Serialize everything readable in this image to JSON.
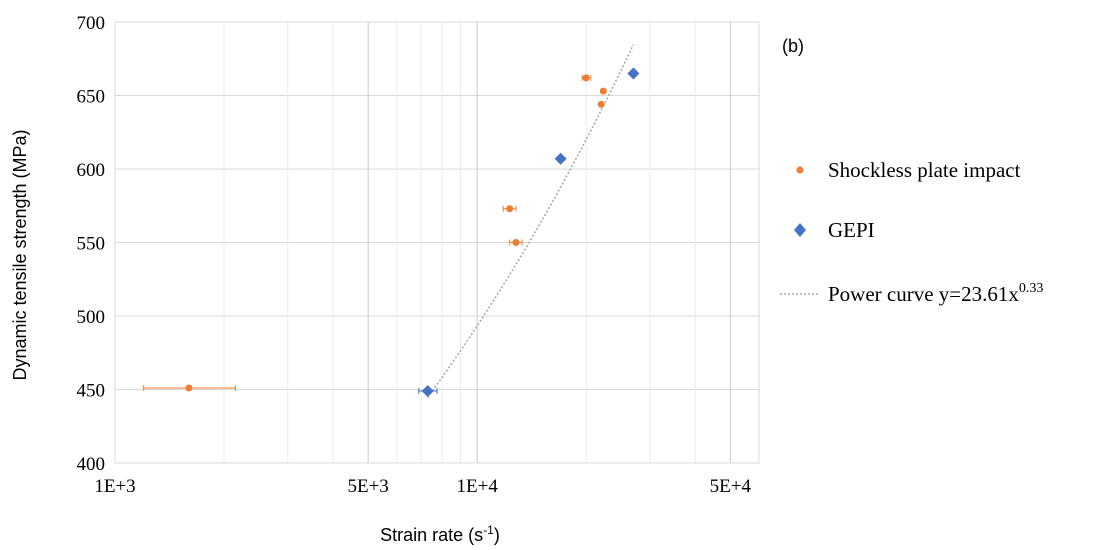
{
  "chart_data": {
    "type": "scatter",
    "panel_label": "(b)",
    "xlabel": "Strain rate (s",
    "xlabel_sup": "-1",
    "xlabel_end": ")",
    "ylabel": "Dynamic tensile strength (MPa)",
    "x_scale": "log",
    "xlim": [
      1000,
      60000
    ],
    "ylim": [
      400,
      700
    ],
    "x_ticks": [
      {
        "value": 1000,
        "label": "1E+3"
      },
      {
        "value": 5000,
        "label": "5E+3"
      },
      {
        "value": 10000,
        "label": "1E+4"
      },
      {
        "value": 50000,
        "label": "5E+4"
      }
    ],
    "x_minor": [
      2000,
      3000,
      4000,
      6000,
      7000,
      8000,
      9000,
      20000,
      30000,
      40000
    ],
    "y_ticks": [
      400,
      450,
      500,
      550,
      600,
      650,
      700
    ],
    "grid": true,
    "legend_position": "right",
    "series": [
      {
        "name": "Shockless plate impact",
        "marker": "circle",
        "color": "#ED7D31",
        "points": [
          {
            "x": 1600,
            "y": 451,
            "xerr": [
              1200,
              2150
            ]
          },
          {
            "x": 12300,
            "y": 573,
            "xerr": [
              11800,
              12800
            ]
          },
          {
            "x": 12800,
            "y": 550,
            "xerr": [
              12300,
              13300
            ]
          },
          {
            "x": 20000,
            "y": 662,
            "xerr": [
              19500,
              20600
            ]
          },
          {
            "x": 22000,
            "y": 644
          },
          {
            "x": 22300,
            "y": 653
          }
        ]
      },
      {
        "name": "GEPI",
        "marker": "diamond",
        "color": "#4472C4",
        "points": [
          {
            "x": 7300,
            "y": 449,
            "xerr": [
              6900,
              7750
            ]
          },
          {
            "x": 17000,
            "y": 607
          },
          {
            "x": 27000,
            "y": 665
          }
        ]
      }
    ],
    "fit": {
      "name": "Power curve y=23.61x",
      "name_sup": "0.33",
      "coef": 23.61,
      "exponent": 0.33,
      "x_range": [
        7300,
        27000
      ],
      "color": "#A6A6A6"
    }
  }
}
